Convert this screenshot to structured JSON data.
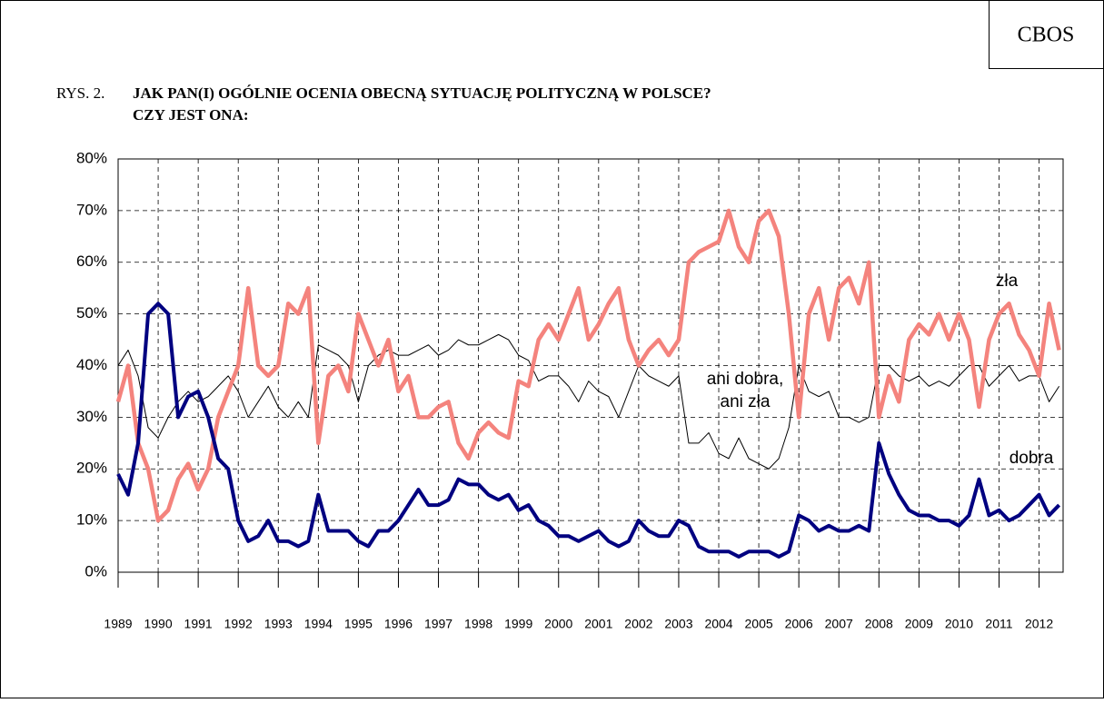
{
  "chart_data": {
    "type": "line",
    "source": "CBOS",
    "figure_label": "RYS. 2.",
    "title": "JAK PAN(I) OGÓLNIE OCENIA OBECNĄ SYTUACJĘ POLITYCZNĄ W POLSCE?",
    "subtitle": "CZY JEST ONA:",
    "x": [
      1989,
      1989.25,
      1989.5,
      1989.75,
      1990,
      1990.25,
      1990.5,
      1990.75,
      1991,
      1991.25,
      1991.5,
      1991.75,
      1992,
      1992.25,
      1992.5,
      1992.75,
      1993,
      1993.25,
      1993.5,
      1993.75,
      1994,
      1994.25,
      1994.5,
      1994.75,
      1995,
      1995.25,
      1995.5,
      1995.75,
      1996,
      1996.25,
      1996.5,
      1996.75,
      1997,
      1997.25,
      1997.5,
      1997.75,
      1998,
      1998.25,
      1998.5,
      1998.75,
      1999,
      1999.25,
      1999.5,
      1999.75,
      2000,
      2000.25,
      2000.5,
      2000.75,
      2001,
      2001.25,
      2001.5,
      2001.75,
      2002,
      2002.25,
      2002.5,
      2002.75,
      2003,
      2003.25,
      2003.5,
      2003.75,
      2004,
      2004.25,
      2004.5,
      2004.75,
      2005,
      2005.25,
      2005.5,
      2005.75,
      2006,
      2006.25,
      2006.5,
      2006.75,
      2007,
      2007.25,
      2007.5,
      2007.75,
      2008,
      2008.25,
      2008.5,
      2008.75,
      2009,
      2009.25,
      2009.5,
      2009.75,
      2010,
      2010.25,
      2010.5,
      2010.75,
      2011,
      2011.25,
      2011.5,
      2011.75,
      2012,
      2012.25,
      2012.5
    ],
    "series": [
      {
        "name": "dobra",
        "color": "#000080",
        "width": 4,
        "values": [
          19,
          15,
          25,
          50,
          52,
          50,
          30,
          34,
          35,
          30,
          22,
          20,
          10,
          6,
          7,
          10,
          6,
          6,
          5,
          6,
          15,
          8,
          8,
          8,
          6,
          5,
          8,
          8,
          10,
          13,
          16,
          13,
          13,
          14,
          18,
          17,
          17,
          15,
          14,
          15,
          12,
          13,
          10,
          9,
          7,
          7,
          6,
          7,
          8,
          6,
          5,
          6,
          10,
          8,
          7,
          7,
          10,
          9,
          5,
          4,
          4,
          4,
          3,
          4,
          4,
          4,
          3,
          4,
          11,
          10,
          8,
          9,
          8,
          8,
          9,
          8,
          25,
          19,
          15,
          12,
          11,
          11,
          10,
          10,
          9,
          11,
          18,
          11,
          12,
          10,
          11,
          13,
          15,
          11,
          13
        ]
      },
      {
        "name": "zła",
        "color": "#f4837d",
        "width": 4.5,
        "values": [
          33,
          40,
          25,
          20,
          10,
          12,
          18,
          21,
          16,
          20,
          30,
          35,
          40,
          55,
          40,
          38,
          40,
          52,
          50,
          55,
          25,
          38,
          40,
          35,
          50,
          45,
          40,
          45,
          35,
          38,
          30,
          30,
          32,
          33,
          25,
          22,
          27,
          29,
          27,
          26,
          37,
          36,
          45,
          48,
          45,
          50,
          55,
          45,
          48,
          52,
          55,
          45,
          40,
          43,
          45,
          42,
          45,
          60,
          62,
          63,
          64,
          70,
          63,
          60,
          68,
          70,
          65,
          50,
          30,
          50,
          55,
          45,
          55,
          57,
          52,
          60,
          30,
          38,
          33,
          45,
          48,
          46,
          50,
          45,
          50,
          45,
          32,
          45,
          50,
          52,
          46,
          43,
          38,
          52,
          43
        ]
      },
      {
        "name": "ani dobra, ani zła",
        "color": "#000000",
        "width": 1,
        "values": [
          40,
          43,
          38,
          28,
          26,
          30,
          33,
          35,
          33,
          34,
          36,
          38,
          35,
          30,
          33,
          36,
          32,
          30,
          33,
          30,
          44,
          43,
          42,
          40,
          33,
          40,
          42,
          43,
          42,
          42,
          43,
          44,
          42,
          43,
          45,
          44,
          44,
          45,
          46,
          45,
          42,
          41,
          37,
          38,
          38,
          36,
          33,
          37,
          35,
          34,
          30,
          35,
          40,
          38,
          37,
          36,
          38,
          25,
          25,
          27,
          23,
          22,
          26,
          22,
          21,
          20,
          22,
          28,
          40,
          35,
          34,
          35,
          30,
          30,
          29,
          30,
          40,
          40,
          38,
          37,
          38,
          36,
          37,
          36,
          38,
          40,
          40,
          36,
          38,
          40,
          37,
          38,
          38,
          33,
          36
        ]
      }
    ],
    "xlim": [
      1989,
      2012.6
    ],
    "xticks": [
      1989,
      1990,
      1991,
      1992,
      1993,
      1994,
      1995,
      1996,
      1997,
      1998,
      1999,
      2000,
      2001,
      2002,
      2003,
      2004,
      2005,
      2006,
      2007,
      2008,
      2009,
      2010,
      2011,
      2012
    ],
    "ylim": [
      0,
      80
    ],
    "yticks": [
      {
        "value": 0,
        "label": "0%"
      },
      {
        "value": 10,
        "label": "10%"
      },
      {
        "value": 20,
        "label": "20%"
      },
      {
        "value": 30,
        "label": "30%"
      },
      {
        "value": 40,
        "label": "40%"
      },
      {
        "value": 50,
        "label": "50%"
      },
      {
        "value": 60,
        "label": "60%"
      },
      {
        "value": 70,
        "label": "70%"
      },
      {
        "value": 80,
        "label": "80%"
      }
    ],
    "grid": true
  }
}
